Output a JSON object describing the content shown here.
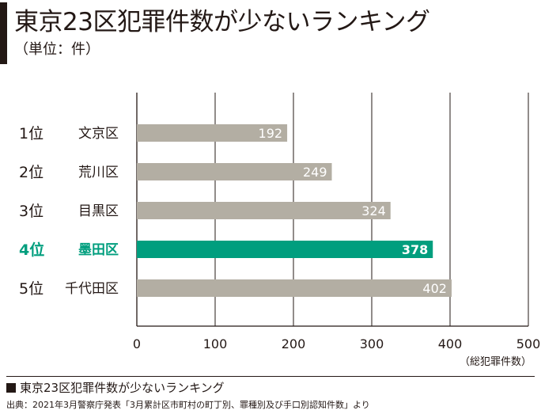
{
  "header": {
    "title": "東京23区犯罪件数が少ないランキング",
    "unit_label": "（単位：件）"
  },
  "caption": "東京23区犯罪件数が少ないランキング",
  "source": "出典：2021年3月警察庁発表「3月累計区市町村の町丁別、罪種別及び手口別認知件数」より",
  "colors": {
    "bar": "#b3aea3",
    "highlight": "#009e7e",
    "highlight_text": "#009e7e",
    "text": "#231815",
    "grid": "#231815"
  },
  "chart_data": {
    "type": "bar",
    "orientation": "horizontal",
    "title": "東京23区犯罪件数が少ないランキング",
    "xlabel": "（総犯罪件数）",
    "xlim": [
      0,
      500
    ],
    "xticks": [
      0,
      100,
      200,
      300,
      400,
      500
    ],
    "grid": true,
    "categories": [
      {
        "rank": "1位",
        "ward": "文京区",
        "value": 192,
        "highlight": false
      },
      {
        "rank": "2位",
        "ward": "荒川区",
        "value": 249,
        "highlight": false
      },
      {
        "rank": "3位",
        "ward": "目黒区",
        "value": 324,
        "highlight": false
      },
      {
        "rank": "4位",
        "ward": "墨田区",
        "value": 378,
        "highlight": true
      },
      {
        "rank": "5位",
        "ward": "千代田区",
        "value": 402,
        "highlight": false
      }
    ]
  }
}
